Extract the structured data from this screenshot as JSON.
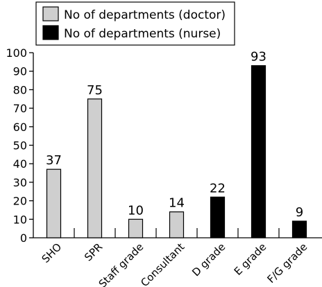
{
  "chart_data": {
    "type": "bar",
    "categories": [
      "SHO",
      "SPR",
      "Staff grade",
      "Consultant",
      "D grade",
      "E grade",
      "F/G grade"
    ],
    "series": [
      {
        "name": "No of departments (doctor)",
        "color": "#cfcfcf",
        "values": [
          37,
          75,
          10,
          14,
          null,
          null,
          null
        ]
      },
      {
        "name": "No of departments (nurse)",
        "color": "#000000",
        "values": [
          null,
          null,
          null,
          null,
          22,
          93,
          9
        ]
      }
    ],
    "data_labels": [
      "37",
      "75",
      "10",
      "14",
      "22",
      "93",
      "9"
    ],
    "ylim": [
      0,
      100
    ],
    "yticks": [
      0,
      10,
      20,
      30,
      40,
      50,
      60,
      70,
      80,
      90,
      100
    ],
    "legend": {
      "placement": "top-left",
      "items": [
        "No of departments (doctor)",
        "No of departments (nurse)"
      ]
    },
    "grid": false
  }
}
